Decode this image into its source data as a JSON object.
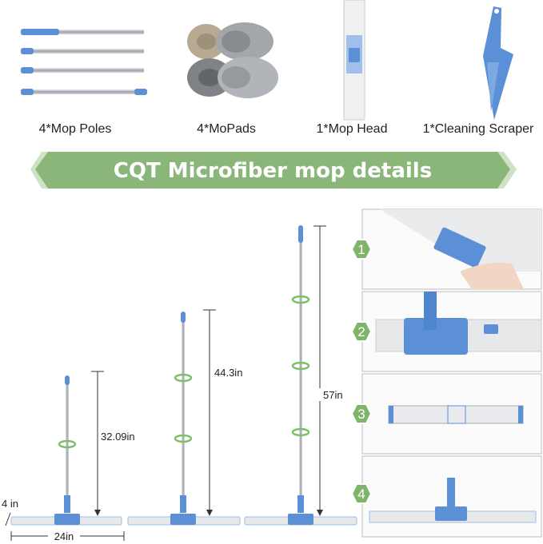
{
  "components": [
    {
      "label": "4*Mop Poles"
    },
    {
      "label": "4*MoPads"
    },
    {
      "label": "1*Mop Head"
    },
    {
      "label": "1*Cleaning Scraper"
    }
  ],
  "banner": {
    "title": "CQT Microfiber mop details",
    "color": "#8bb67a"
  },
  "dimensions": {
    "width": "24in",
    "depth": "4 in",
    "heights": [
      "32.09in",
      "44.3in",
      "57in"
    ]
  },
  "steps": [
    "1",
    "2",
    "3",
    "4"
  ],
  "colors": {
    "accent_blue": "#5b8fd6",
    "pole_silver": "#b9bcc0",
    "pad_gray": "#e6e8ea"
  }
}
